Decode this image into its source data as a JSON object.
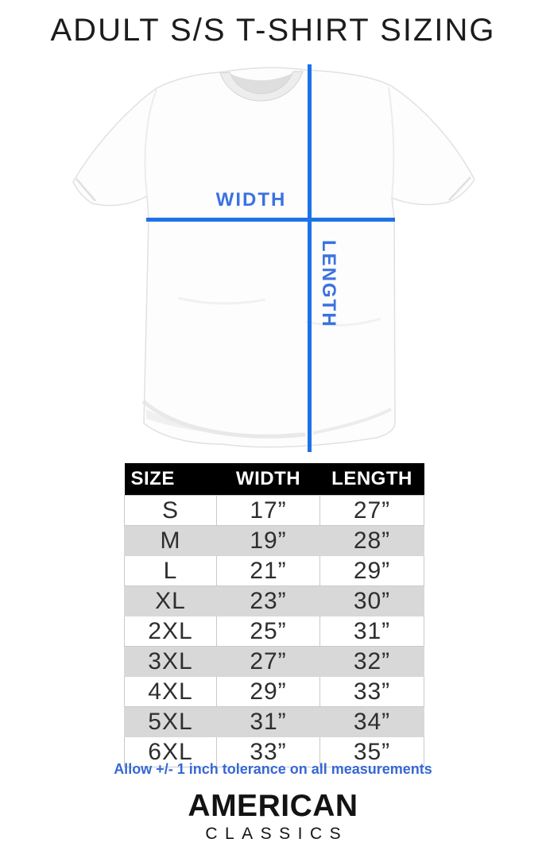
{
  "title": "ADULT S/S T-SHIRT SIZING",
  "diagram": {
    "width_label": "WIDTH",
    "length_label": "LENGTH"
  },
  "table": {
    "headers": [
      "SIZE",
      "WIDTH",
      "LENGTH"
    ],
    "rows": [
      [
        "S",
        "17”",
        "27”"
      ],
      [
        "M",
        "19”",
        "28”"
      ],
      [
        "L",
        "21”",
        "29”"
      ],
      [
        "XL",
        "23”",
        "30”"
      ],
      [
        "2XL",
        "25”",
        "31”"
      ],
      [
        "3XL",
        "27”",
        "32”"
      ],
      [
        "4XL",
        "29”",
        "33”"
      ],
      [
        "5XL",
        "31”",
        "34”"
      ],
      [
        "6XL",
        "33”",
        "35”"
      ]
    ]
  },
  "tolerance_note": "Allow +/- 1 inch tolerance on all measurements",
  "logo": {
    "primary": "AMERICAN",
    "secondary": "CLASSICS"
  },
  "colors": {
    "measure_line_blue": "#1d72e6",
    "measure_label_blue": "#3b72e0",
    "note_blue": "#3668d4",
    "header_bg": "#000000",
    "header_text": "#ffffff",
    "row_alt_gray": "#d8d8d8"
  },
  "chart_data": {
    "type": "table",
    "title": "ADULT S/S T-SHIRT SIZING",
    "columns": [
      "SIZE",
      "WIDTH",
      "LENGTH"
    ],
    "rows": [
      {
        "size": "S",
        "width_in": 17,
        "length_in": 27
      },
      {
        "size": "M",
        "width_in": 19,
        "length_in": 28
      },
      {
        "size": "L",
        "width_in": 21,
        "length_in": 29
      },
      {
        "size": "XL",
        "width_in": 23,
        "length_in": 30
      },
      {
        "size": "2XL",
        "width_in": 25,
        "length_in": 31
      },
      {
        "size": "3XL",
        "width_in": 27,
        "length_in": 32
      },
      {
        "size": "4XL",
        "width_in": 29,
        "length_in": 33
      },
      {
        "size": "5XL",
        "width_in": 31,
        "length_in": 34
      },
      {
        "size": "6XL",
        "width_in": 33,
        "length_in": 35
      }
    ],
    "notes": "Allow +/- 1 inch tolerance on all measurements; measurements shown on a flat-laid short-sleeve t-shirt (width across chest, length shoulder to hem)"
  }
}
